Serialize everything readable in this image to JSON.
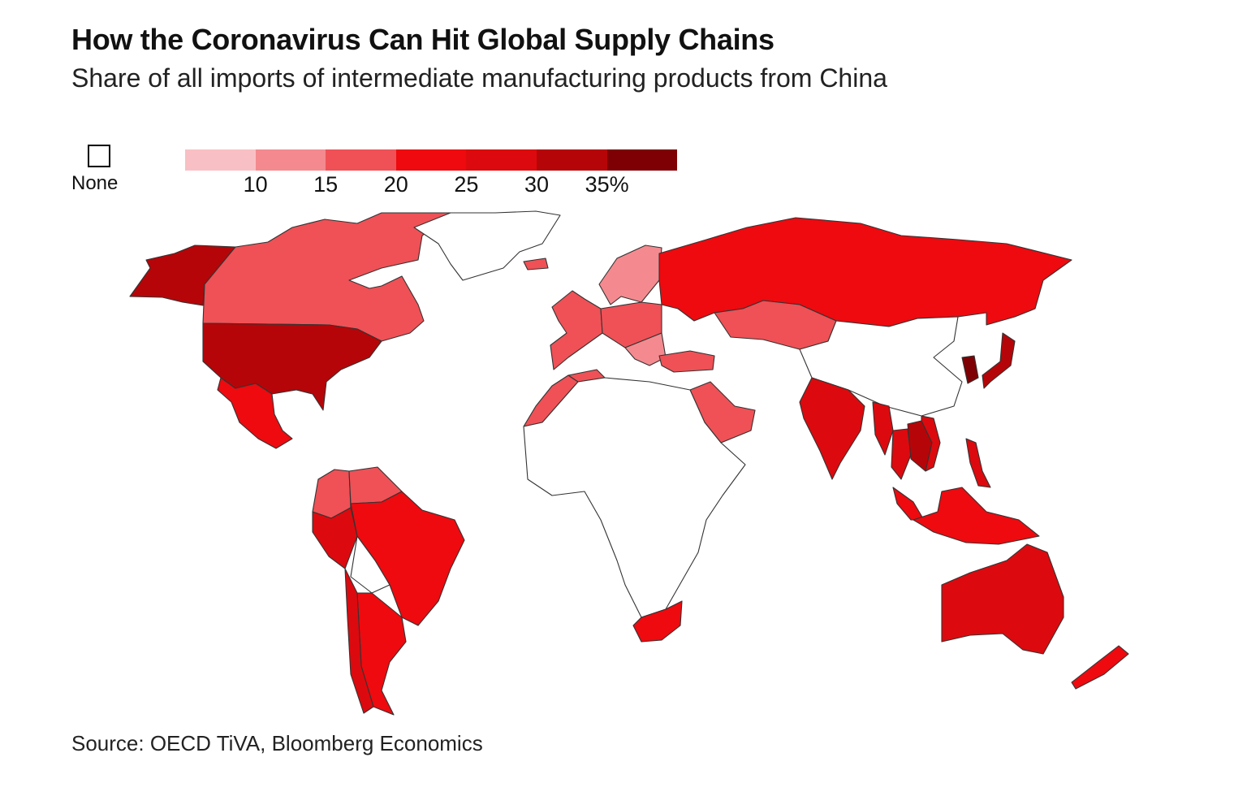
{
  "header": {
    "title": "How the Coronavirus Can Hit Global Supply Chains",
    "subtitle": "Share of all imports of intermediate manufacturing products from China"
  },
  "legend": {
    "none_label": "None",
    "ticks": [
      "10",
      "15",
      "20",
      "25",
      "30",
      "35%"
    ],
    "colors": [
      "#f8c0c4",
      "#f48a8f",
      "#ef5156",
      "#ee0a0f",
      "#dc0a0e",
      "#b60508",
      "#7f0004"
    ],
    "none_color": "#ffffff"
  },
  "source": "Source: OECD TiVA, Bloomberg Economics",
  "map_data": {
    "regions": [
      {
        "name": "Alaska",
        "bin": 5
      },
      {
        "name": "Canada",
        "bin": 2
      },
      {
        "name": "Greenland",
        "bin": null
      },
      {
        "name": "United States",
        "bin": 5
      },
      {
        "name": "Mexico",
        "bin": 3
      },
      {
        "name": "Colombia",
        "bin": 2
      },
      {
        "name": "Venezuela",
        "bin": 2
      },
      {
        "name": "Peru",
        "bin": 4
      },
      {
        "name": "Brazil",
        "bin": 3
      },
      {
        "name": "Bolivia",
        "bin": null
      },
      {
        "name": "Argentina",
        "bin": 3
      },
      {
        "name": "Chile",
        "bin": 4
      },
      {
        "name": "Iceland",
        "bin": 2
      },
      {
        "name": "Scandinavia",
        "bin": 1
      },
      {
        "name": "Western Europe",
        "bin": 2
      },
      {
        "name": "Central Europe",
        "bin": 2
      },
      {
        "name": "Balkans",
        "bin": 1
      },
      {
        "name": "Turkey",
        "bin": 2
      },
      {
        "name": "Russia",
        "bin": 3
      },
      {
        "name": "Kazakhstan",
        "bin": 2
      },
      {
        "name": "Morocco",
        "bin": 2
      },
      {
        "name": "Tunisia",
        "bin": 2
      },
      {
        "name": "Saudi Arabia",
        "bin": 2
      },
      {
        "name": "Africa",
        "bin": null
      },
      {
        "name": "South Africa",
        "bin": 3
      },
      {
        "name": "China",
        "bin": null
      },
      {
        "name": "India",
        "bin": 4
      },
      {
        "name": "Myanmar",
        "bin": 4
      },
      {
        "name": "Thailand",
        "bin": 4
      },
      {
        "name": "Cambodia",
        "bin": 5
      },
      {
        "name": "Vietnam",
        "bin": 4
      },
      {
        "name": "Korea",
        "bin": 6
      },
      {
        "name": "Japan",
        "bin": 5
      },
      {
        "name": "Philippines",
        "bin": 4
      },
      {
        "name": "Malaysia",
        "bin": 3
      },
      {
        "name": "Indonesia",
        "bin": 3
      },
      {
        "name": "Australia",
        "bin": 4
      },
      {
        "name": "New Zealand",
        "bin": 3
      }
    ]
  }
}
